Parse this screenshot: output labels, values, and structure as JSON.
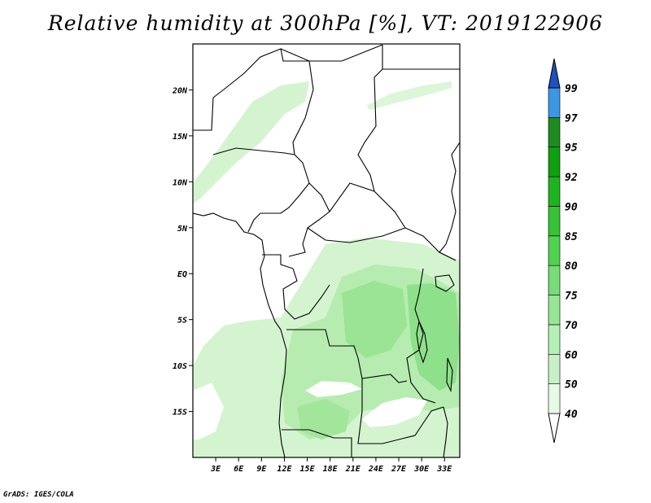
{
  "title": "Relative humidity at 300hPa [%], VT: 2019122906",
  "credit": "GrADS: IGES/COLA",
  "map": {
    "lon_range": [
      0,
      35
    ],
    "lat_range": [
      -20,
      25
    ],
    "lat_ticks": [
      {
        "value": 20,
        "label": "20N"
      },
      {
        "value": 15,
        "label": "15N"
      },
      {
        "value": 10,
        "label": "10N"
      },
      {
        "value": 5,
        "label": "5N"
      },
      {
        "value": 0,
        "label": "EQ"
      },
      {
        "value": -5,
        "label": "5S"
      },
      {
        "value": -10,
        "label": "10S"
      },
      {
        "value": -15,
        "label": "15S"
      }
    ],
    "lon_ticks": [
      {
        "value": 3,
        "label": "3E"
      },
      {
        "value": 6,
        "label": "6E"
      },
      {
        "value": 9,
        "label": "9E"
      },
      {
        "value": 12,
        "label": "12E"
      },
      {
        "value": 15,
        "label": "15E"
      },
      {
        "value": 18,
        "label": "18E"
      },
      {
        "value": 21,
        "label": "21E"
      },
      {
        "value": 24,
        "label": "24E"
      },
      {
        "value": 27,
        "label": "27E"
      },
      {
        "value": 30,
        "label": "30E"
      },
      {
        "value": 33,
        "label": "33E"
      }
    ]
  },
  "colorbar": {
    "levels": [
      "40",
      "50",
      "60",
      "70",
      "75",
      "80",
      "85",
      "90",
      "92",
      "95",
      "97",
      "99"
    ],
    "colors": {
      "lt40": "#ffffff",
      "b40_50": "#e6fae6",
      "b50_60": "#c8f0c8",
      "b60_70": "#b4f0b4",
      "b70_75": "#96e696",
      "b75_80": "#78dc78",
      "b80_85": "#50d250",
      "b85_90": "#37c337",
      "b90_92": "#1eb41e",
      "b92_95": "#0fa00f",
      "b95_97": "#1e8c1e",
      "b97_99": "#3c96e6",
      "gt99": "#1e64d2",
      "top": "#1e50be"
    }
  }
}
